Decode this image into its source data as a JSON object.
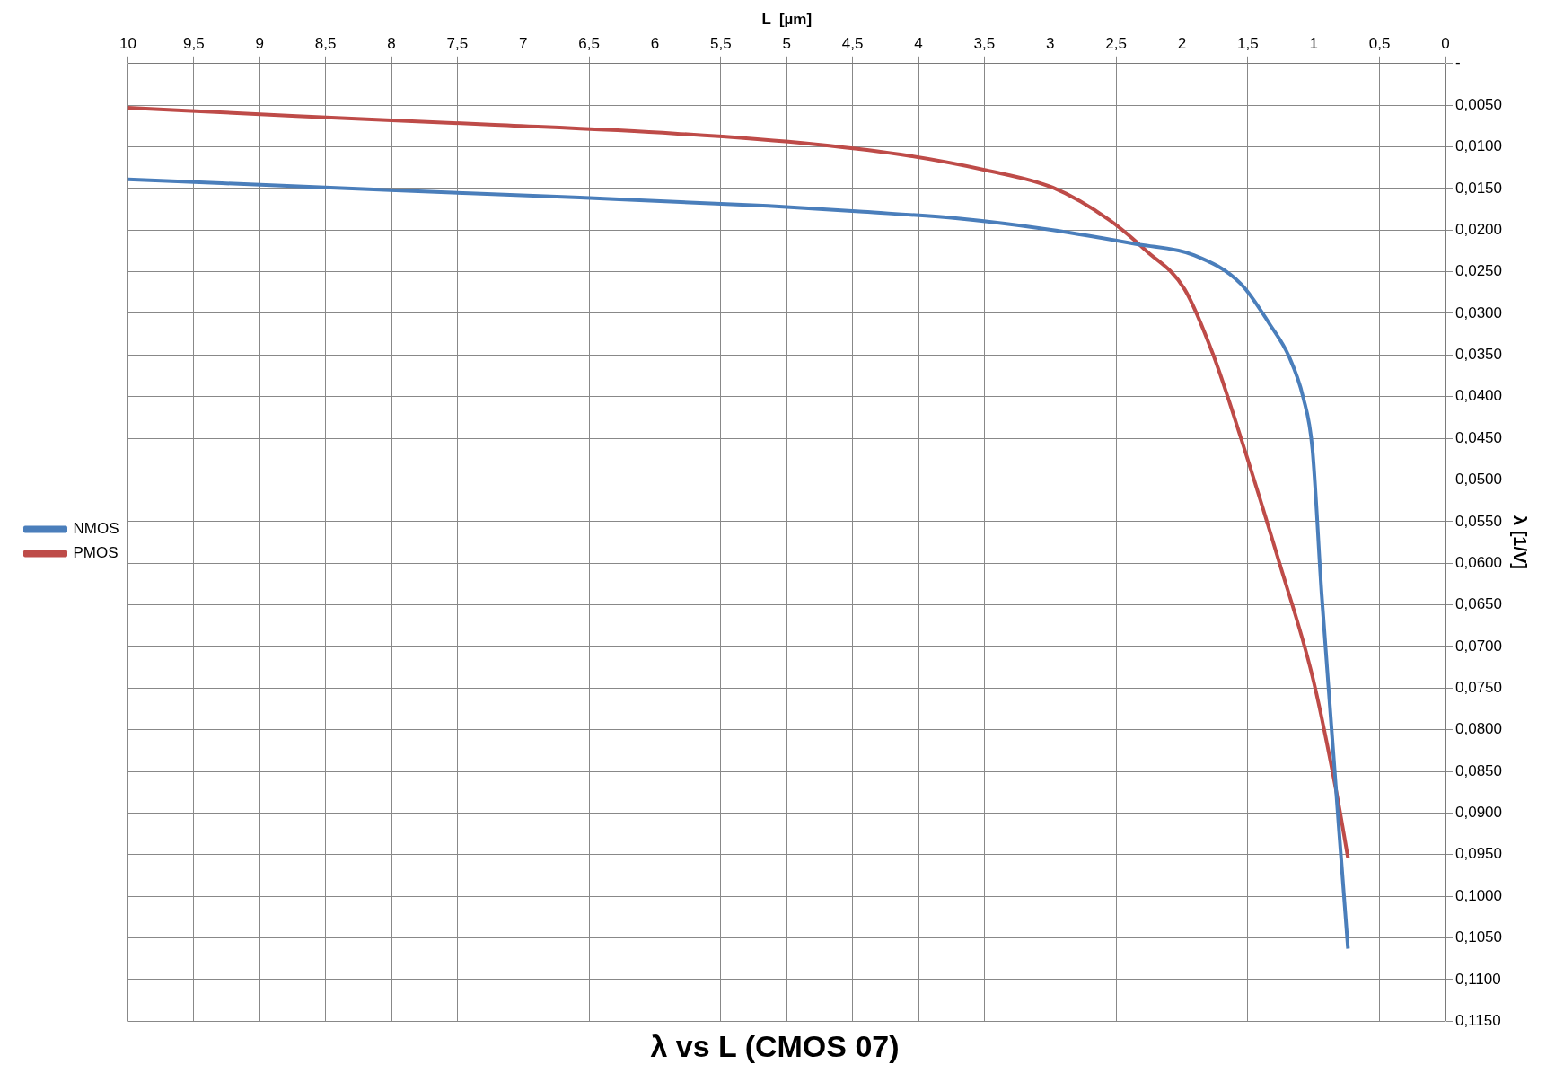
{
  "chart_data": {
    "type": "line",
    "title": "λ vs L (CMOS 07)",
    "xlabel": "L  [µm]",
    "ylabel": "λ [1/V]",
    "series": [
      {
        "name": "NMOS",
        "color": "#4a7ebb",
        "x": [
          0.74,
          0.94,
          1.01,
          1.08,
          1.19,
          1.33,
          1.55,
          1.91,
          2.34,
          2.98,
          3.7,
          4.42,
          5.14,
          6.57,
          8.01,
          10
        ],
        "values": [
          0.1063,
          0.0637,
          0.0463,
          0.0401,
          0.0351,
          0.0314,
          0.0265,
          0.023,
          0.0217,
          0.02,
          0.0186,
          0.0178,
          0.0171,
          0.0161,
          0.0152,
          0.0139
        ]
      },
      {
        "name": "PMOS",
        "color": "#be4b48",
        "x": [
          0.74,
          0.83,
          1.01,
          1.26,
          1.55,
          1.76,
          1.98,
          2.27,
          2.55,
          2.98,
          3.49,
          4.06,
          4.78,
          5.85,
          7.29,
          8.72,
          10
        ],
        "values": [
          0.0954,
          0.0873,
          0.0736,
          0.06,
          0.0451,
          0.0351,
          0.0271,
          0.0225,
          0.0188,
          0.0149,
          0.0128,
          0.0111,
          0.0097,
          0.0084,
          0.0073,
          0.0063,
          0.0053
        ]
      }
    ],
    "xlim": [
      10,
      0
    ],
    "xticks": [
      0,
      {
        "value": 0.5,
        "label": "0,5"
      },
      1,
      {
        "value": 1.5,
        "label": "1,5"
      },
      2,
      {
        "value": 2.5,
        "label": "2,5"
      },
      3,
      {
        "value": 3.5,
        "label": "3,5"
      },
      4,
      {
        "value": 4.5,
        "label": "4,5"
      },
      5,
      {
        "value": 5.5,
        "label": "5,5"
      },
      6,
      {
        "value": 6.5,
        "label": "6,5"
      },
      7,
      {
        "value": 7.5,
        "label": "7,5"
      },
      8,
      {
        "value": 8.5,
        "label": "8,5"
      },
      9,
      {
        "value": 9.5,
        "label": "9,5"
      },
      10
    ],
    "ylim": [
      0.115,
      0
    ],
    "yticks": [
      {
        "value": 0,
        "label": "-"
      },
      {
        "value": 0.005,
        "label": "0,0050"
      },
      {
        "value": 0.01,
        "label": "0,0100"
      },
      {
        "value": 0.015,
        "label": "0,0150"
      },
      {
        "value": 0.02,
        "label": "0,0200"
      },
      {
        "value": 0.025,
        "label": "0,0250"
      },
      {
        "value": 0.03,
        "label": "0,0300"
      },
      {
        "value": 0.035,
        "label": "0,0350"
      },
      {
        "value": 0.04,
        "label": "0,0400"
      },
      {
        "value": 0.045,
        "label": "0,0450"
      },
      {
        "value": 0.05,
        "label": "0,0500"
      },
      {
        "value": 0.055,
        "label": "0,0550"
      },
      {
        "value": 0.06,
        "label": "0,0600"
      },
      {
        "value": 0.065,
        "label": "0,0650"
      },
      {
        "value": 0.07,
        "label": "0,0700"
      },
      {
        "value": 0.075,
        "label": "0,0750"
      },
      {
        "value": 0.08,
        "label": "0,0800"
      },
      {
        "value": 0.085,
        "label": "0,0850"
      },
      {
        "value": 0.09,
        "label": "0,0900"
      },
      {
        "value": 0.095,
        "label": "0,0950"
      },
      {
        "value": 0.1,
        "label": "0,1000"
      },
      {
        "value": 0.105,
        "label": "0,1050"
      },
      {
        "value": 0.11,
        "label": "0,1100"
      },
      {
        "value": 0.115,
        "label": "0,1150"
      }
    ],
    "grid": true,
    "legend": "left",
    "marker": "none",
    "line_style": "solid"
  }
}
